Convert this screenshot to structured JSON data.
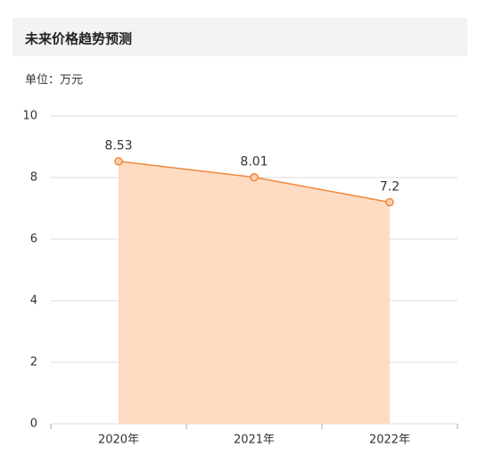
{
  "chart_data": {
    "type": "area",
    "title": "未来价格趋势预测",
    "unit_label": "单位：万元",
    "categories": [
      "2020年",
      "2021年",
      "2022年"
    ],
    "values": [
      8.53,
      8.01,
      7.2
    ],
    "color": "#f0883a",
    "fill_color": "#fddcc3",
    "ylim": [
      0,
      10
    ],
    "yticks": [
      0,
      2,
      4,
      6,
      8,
      10
    ],
    "grid": true
  }
}
